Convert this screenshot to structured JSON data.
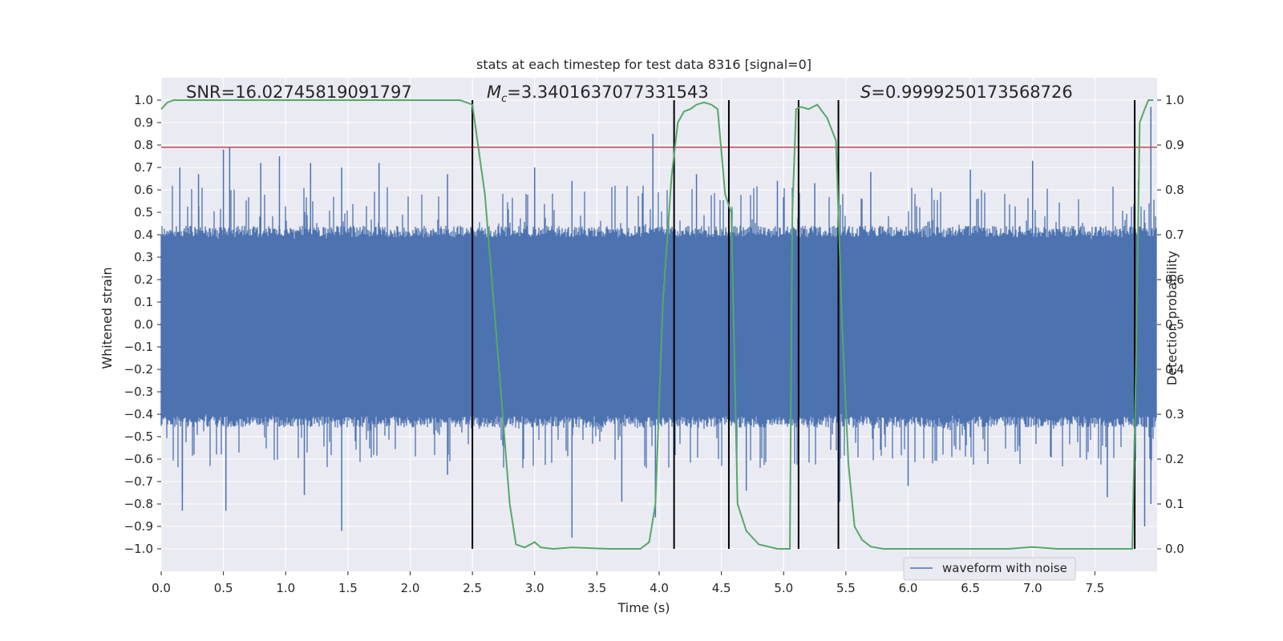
{
  "chart_data": {
    "type": "line",
    "title": "stats at each timestep for test data 8316 [signal=0]",
    "xlabel": "Time (s)",
    "ylabel": "Whitened strain",
    "y2label": "Detection probability",
    "xlim": [
      0.0,
      8.0
    ],
    "ylim": [
      -1.1,
      1.1
    ],
    "y2lim": [
      -0.05,
      1.05
    ],
    "x_ticks": [
      0.0,
      0.5,
      1.0,
      1.5,
      2.0,
      2.5,
      3.0,
      3.5,
      4.0,
      4.5,
      5.0,
      5.5,
      6.0,
      6.5,
      7.0,
      7.5
    ],
    "x_tick_labels": [
      "0.0",
      "0.5",
      "1.0",
      "1.5",
      "2.0",
      "2.5",
      "3.0",
      "3.5",
      "4.0",
      "4.5",
      "5.0",
      "5.5",
      "6.0",
      "6.5",
      "7.0",
      "7.5"
    ],
    "y_ticks": [
      1.0,
      0.9,
      0.8,
      0.7,
      0.6,
      0.5,
      0.4,
      0.3,
      0.2,
      0.1,
      0.0,
      -0.1,
      -0.2,
      -0.3,
      -0.4,
      -0.5,
      -0.6,
      -0.7,
      -0.8,
      -0.9,
      -1.0
    ],
    "y_tick_labels": [
      "1.0",
      "0.9",
      "0.8",
      "0.7",
      "0.6",
      "0.5",
      "0.4",
      "0.3",
      "0.2",
      "0.1",
      "0.0",
      "−0.1",
      "−0.2",
      "−0.3",
      "−0.4",
      "−0.5",
      "−0.6",
      "−0.7",
      "−0.8",
      "−0.9",
      "−1.0"
    ],
    "y2_ticks": [
      1.0,
      0.9,
      0.8,
      0.7,
      0.6,
      0.5,
      0.4,
      0.3,
      0.2,
      0.1,
      0.0
    ],
    "y2_tick_labels": [
      "1.0",
      "0.9",
      "0.8",
      "0.7",
      "0.6",
      "0.5",
      "0.4",
      "0.3",
      "0.2",
      "0.1",
      "0.0"
    ],
    "annotations": {
      "snr": "SNR=16.02745819091797",
      "mc_symbol": "M",
      "mc_subscript": "c",
      "mc_value": "=3.3401637077331543",
      "s_symbol": "S",
      "s_value": "=0.9999250173568726"
    },
    "threshold": {
      "y": 0.79,
      "color": "#c44e52"
    },
    "boundaries_s": [
      2.5,
      4.12,
      4.56,
      5.12,
      5.44,
      7.82
    ],
    "series": [
      {
        "name": "waveform with noise",
        "color": "#4c72b0",
        "axis": "left",
        "duration_s": 8.0,
        "envelope": {
          "upper": 0.38,
          "lower": -0.4
        },
        "peaks": [
          {
            "x": 0.15,
            "y": 0.7
          },
          {
            "x": 0.3,
            "y": 0.67
          },
          {
            "x": 0.5,
            "y": 0.78
          },
          {
            "x": 0.55,
            "y": 0.79
          },
          {
            "x": 0.8,
            "y": 0.72
          },
          {
            "x": 0.95,
            "y": 0.75
          },
          {
            "x": 1.2,
            "y": 0.72
          },
          {
            "x": 1.45,
            "y": 0.7
          },
          {
            "x": 1.75,
            "y": 0.72
          },
          {
            "x": 2.3,
            "y": 0.67
          },
          {
            "x": 3.0,
            "y": 0.7
          },
          {
            "x": 3.3,
            "y": 0.64
          },
          {
            "x": 3.95,
            "y": 0.85
          },
          {
            "x": 4.3,
            "y": 0.67
          },
          {
            "x": 4.95,
            "y": 0.64
          },
          {
            "x": 5.25,
            "y": 0.63
          },
          {
            "x": 5.7,
            "y": 0.68
          },
          {
            "x": 6.5,
            "y": 0.69
          },
          {
            "x": 7.0,
            "y": 0.73
          },
          {
            "x": 7.85,
            "y": 0.64
          },
          {
            "x": 7.95,
            "y": 0.97
          },
          {
            "x": 0.17,
            "y": -0.75
          },
          {
            "x": 0.17,
            "y": -0.83
          },
          {
            "x": 0.52,
            "y": -0.83
          },
          {
            "x": 1.15,
            "y": -0.76
          },
          {
            "x": 1.45,
            "y": -0.92
          },
          {
            "x": 2.3,
            "y": -0.67
          },
          {
            "x": 3.3,
            "y": -0.95
          },
          {
            "x": 3.7,
            "y": -0.79
          },
          {
            "x": 3.97,
            "y": -0.86
          },
          {
            "x": 4.7,
            "y": -0.74
          },
          {
            "x": 5.45,
            "y": -0.79
          },
          {
            "x": 6.0,
            "y": -0.72
          },
          {
            "x": 7.6,
            "y": -0.77
          },
          {
            "x": 7.9,
            "y": -0.9
          },
          {
            "x": 7.95,
            "y": -0.8
          }
        ]
      },
      {
        "name": "detection probability",
        "color": "#55a868",
        "axis": "right",
        "x": [
          0.0,
          0.05,
          0.1,
          0.2,
          2.4,
          2.5,
          2.6,
          2.7,
          2.8,
          2.85,
          2.92,
          3.0,
          3.05,
          3.15,
          3.3,
          3.6,
          3.85,
          3.92,
          3.97,
          4.03,
          4.1,
          4.15,
          4.2,
          4.25,
          4.3,
          4.36,
          4.42,
          4.47,
          4.53,
          4.58,
          4.63,
          4.7,
          4.8,
          4.95,
          5.05,
          5.07,
          5.1,
          5.14,
          5.2,
          5.27,
          5.35,
          5.42,
          5.47,
          5.52,
          5.57,
          5.63,
          5.7,
          5.8,
          6.0,
          6.5,
          6.8,
          7.0,
          7.2,
          7.5,
          7.8,
          7.83,
          7.86,
          7.9,
          7.93,
          7.97
        ],
        "y": [
          0.98,
          0.995,
          1.0,
          1.0,
          1.0,
          0.99,
          0.79,
          0.45,
          0.1,
          0.01,
          0.003,
          0.015,
          0.003,
          0.0,
          0.003,
          0.0,
          0.0,
          0.015,
          0.1,
          0.55,
          0.83,
          0.95,
          0.975,
          0.98,
          0.99,
          0.995,
          0.99,
          0.98,
          0.79,
          0.75,
          0.1,
          0.04,
          0.01,
          0.0,
          0.0,
          0.75,
          0.98,
          0.985,
          0.98,
          0.99,
          0.96,
          0.91,
          0.5,
          0.19,
          0.05,
          0.02,
          0.005,
          0.0,
          0.0,
          0.0,
          0.0,
          0.004,
          0.0,
          0.0,
          0.0,
          0.4,
          0.95,
          0.98,
          1.0,
          1.0
        ]
      }
    ],
    "legend": {
      "placement": "lower-right",
      "entries": [
        "waveform with noise"
      ]
    }
  }
}
